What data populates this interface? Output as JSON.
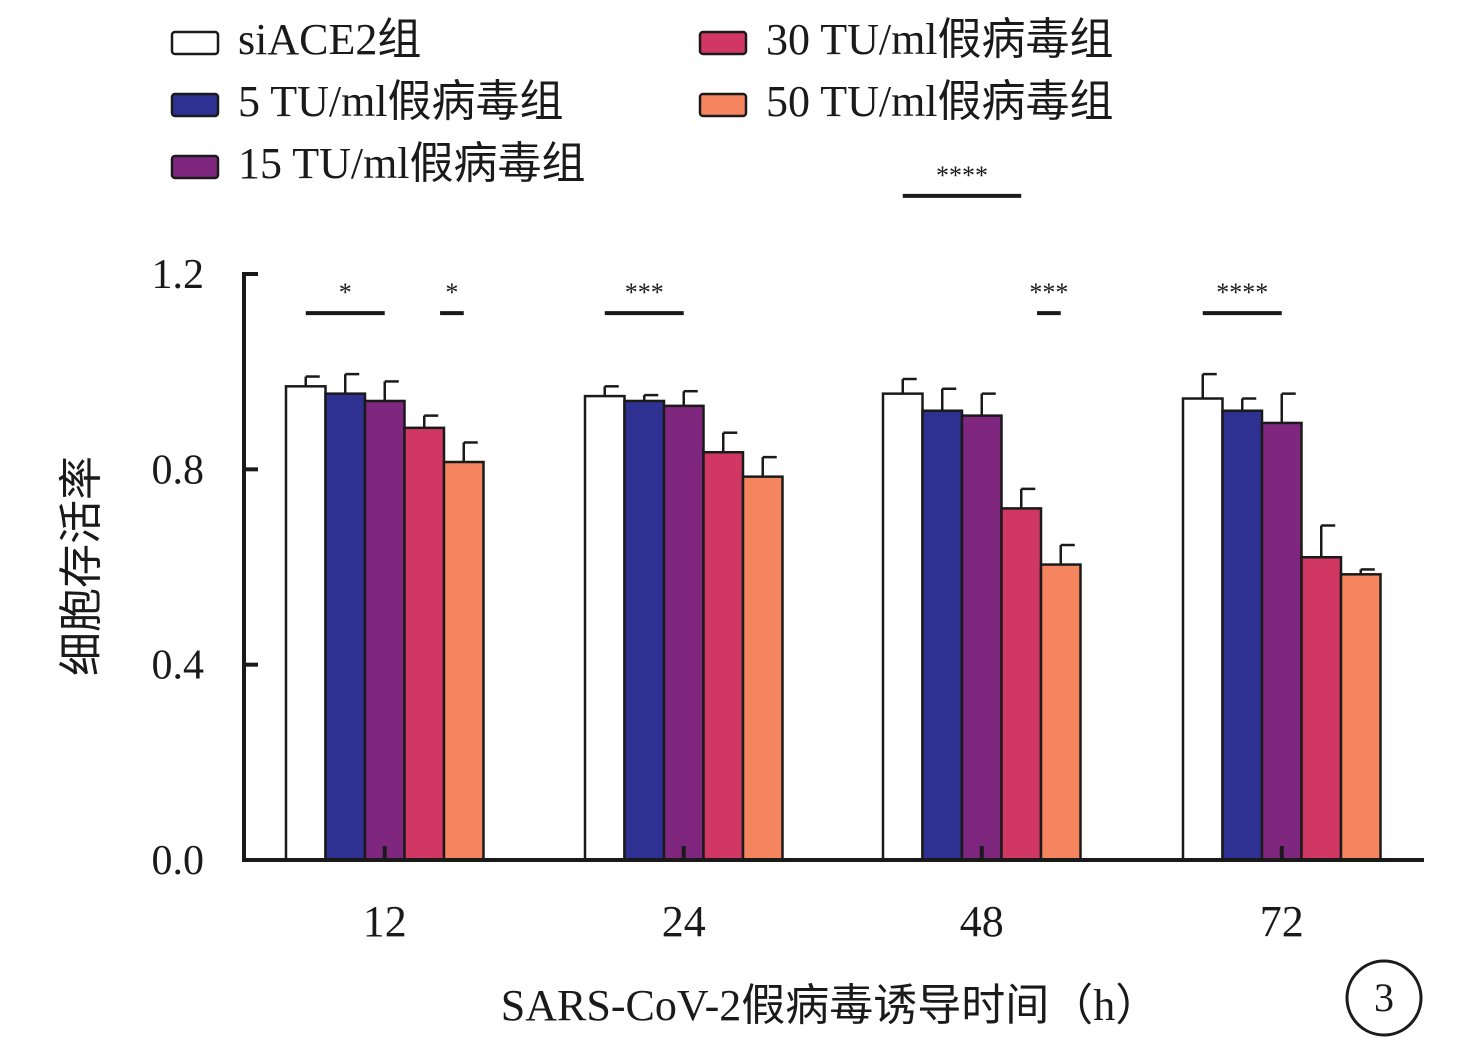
{
  "chart_data": {
    "type": "bar",
    "categories": [
      "12",
      "24",
      "48",
      "72"
    ],
    "xlabel": "SARS-CoV-2假病毒诱导时间（h）",
    "ylabel": "细胞存活率",
    "ylim": [
      0,
      1.2
    ],
    "yticks": [
      "0.0",
      "0.4",
      "0.8",
      "1.2"
    ],
    "legend_position": "top",
    "grid": false,
    "series": [
      {
        "name": "siACE2组",
        "color": "#ffffff",
        "values": [
          0.97,
          0.95,
          0.955,
          0.945
        ],
        "errors": [
          0.02,
          0.02,
          0.03,
          0.05
        ]
      },
      {
        "name": "5 TU/ml假病毒组",
        "color": "#2e3192",
        "values": [
          0.955,
          0.94,
          0.92,
          0.92
        ],
        "errors": [
          0.04,
          0.012,
          0.045,
          0.025
        ]
      },
      {
        "name": "15 TU/ml假病毒组",
        "color": "#7f267f",
        "values": [
          0.94,
          0.93,
          0.91,
          0.895
        ],
        "errors": [
          0.04,
          0.03,
          0.045,
          0.06
        ]
      },
      {
        "name": "30 TU/ml假病毒组",
        "color": "#d03762",
        "values": [
          0.885,
          0.835,
          0.72,
          0.62
        ],
        "errors": [
          0.025,
          0.04,
          0.04,
          0.065
        ]
      },
      {
        "name": "50 TU/ml假病毒组",
        "color": "#f5855f",
        "values": [
          0.815,
          0.785,
          0.605,
          0.585
        ],
        "errors": [
          0.04,
          0.04,
          0.04,
          0.01
        ]
      }
    ],
    "significance": [
      {
        "group": 0,
        "from": 0,
        "to": 2,
        "label": "*"
      },
      {
        "group": 0,
        "from": 3,
        "to": 4,
        "label": "*"
      },
      {
        "group": 1,
        "from": 0,
        "to": 2,
        "label": "***"
      },
      {
        "group": 2,
        "from": 0,
        "to": 3,
        "label": "****",
        "level": 1
      },
      {
        "group": 2,
        "from": 3,
        "to": 4,
        "label": "***"
      },
      {
        "group": 3,
        "from": 0,
        "to": 2,
        "label": "****"
      }
    ],
    "panel_label": "3"
  }
}
